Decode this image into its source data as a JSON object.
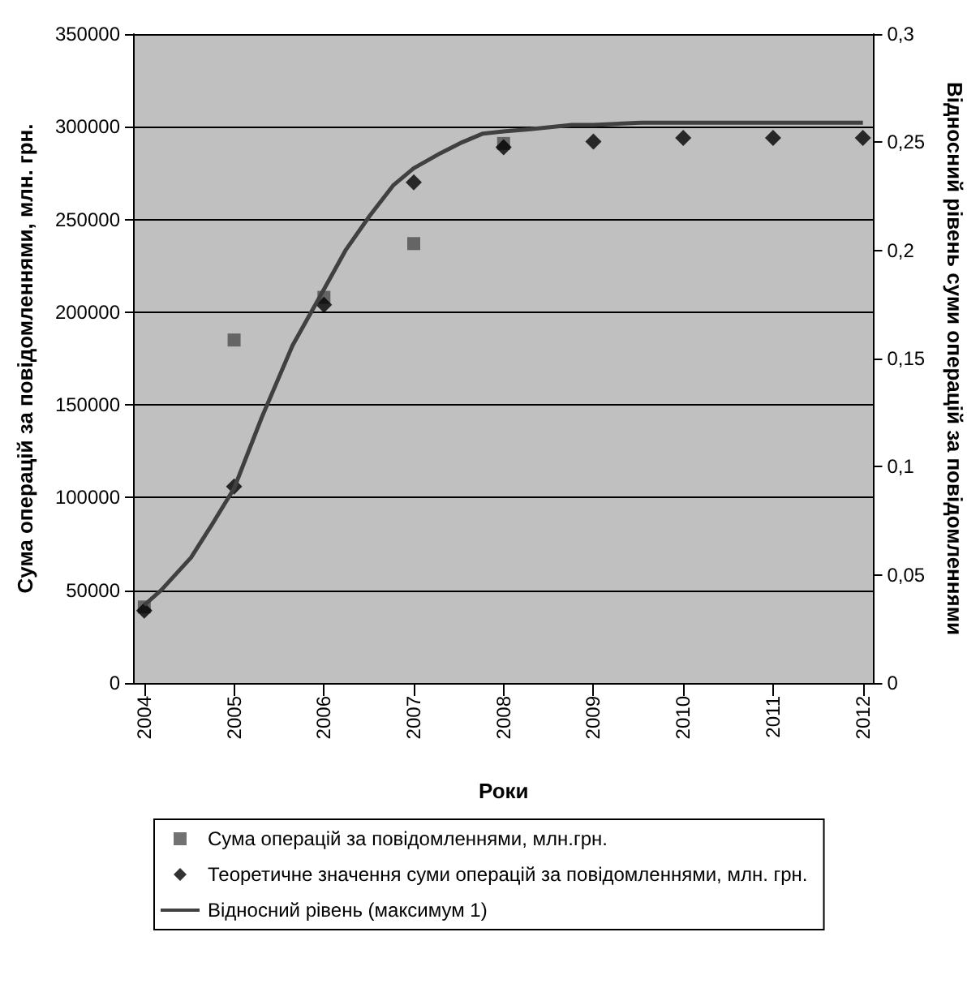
{
  "chart_data": {
    "type": "scatter",
    "xlabel": "Роки",
    "ylabel": "Сума операцій за повідомленнями, млн. грн.",
    "y2label": "Відносний рівень суми операцій за повідомленнями",
    "x": [
      2004,
      2005,
      2006,
      2007,
      2008,
      2009,
      2010,
      2011,
      2012
    ],
    "xlim": [
      2003.875,
      2012.125
    ],
    "xticks": [
      2004,
      2005,
      2006,
      2007,
      2008,
      2009,
      2010,
      2011,
      2012
    ],
    "ylim": [
      0,
      350000
    ],
    "yticks": [
      0,
      50000,
      100000,
      150000,
      200000,
      250000,
      300000,
      350000
    ],
    "y2lim": [
      0,
      0.3
    ],
    "y2ticks": [
      {
        "value": 0,
        "label": "0"
      },
      {
        "value": 0.05,
        "label": "0,05"
      },
      {
        "value": 0.1,
        "label": "0,1"
      },
      {
        "value": 0.15,
        "label": "0,15"
      },
      {
        "value": 0.2,
        "label": "0,2"
      },
      {
        "value": 0.25,
        "label": "0,25"
      },
      {
        "value": 0.3,
        "label": "0,3"
      }
    ],
    "grid": "y",
    "legend": "bottom",
    "series": [
      {
        "name": "Сума операцій за повідомленнями, млн.грн.",
        "marker": "square",
        "color": "#4d4d4d",
        "values": [
          41000,
          185000,
          208000,
          237000,
          291000,
          null,
          null,
          null,
          null
        ]
      },
      {
        "name": "Теоретичне значення суми операцій за повідомленнями, млн. грн.",
        "marker": "diamond",
        "color": "#000000",
        "values": [
          39000,
          106000,
          204000,
          270000,
          289000,
          292000,
          294000,
          294000,
          294000
        ]
      },
      {
        "name": "Відносний рівень (максимум 1)",
        "type": "line",
        "axis": "y2",
        "marker": "none",
        "color": "#404040",
        "x": [
          2004,
          2004.19,
          2004.52,
          2004.75,
          2005,
          2005.31,
          2005.65,
          2006,
          2006.24,
          2006.51,
          2006.77,
          2007,
          2007.3,
          2007.54,
          2007.77,
          2008,
          2008.3,
          2008.76,
          2009,
          2009.53,
          2010,
          2011,
          2012
        ],
        "values": [
          0.036,
          0.043,
          0.058,
          0.073,
          0.09,
          0.123,
          0.156,
          0.182,
          0.2,
          0.216,
          0.23,
          0.238,
          0.245,
          0.25,
          0.254,
          0.255,
          0.256,
          0.258,
          0.258,
          0.259,
          0.259,
          0.259,
          0.259
        ]
      }
    ]
  }
}
